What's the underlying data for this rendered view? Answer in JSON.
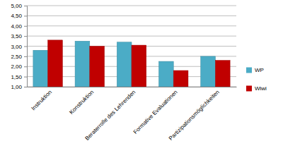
{
  "chart_data": {
    "type": "bar",
    "categories": [
      "Instruktion",
      "Konstruktion",
      "Beraterrolle des Lehrenden",
      "Formative Evaluationen",
      "Partizipationsmöglichkeiten"
    ],
    "series": [
      {
        "name": "WP",
        "color": "#4bacc6",
        "values": [
          2.8,
          3.25,
          3.2,
          2.25,
          2.5
        ]
      },
      {
        "name": "Wiwi",
        "color": "#c00000",
        "values": [
          3.3,
          3.0,
          3.05,
          1.8,
          2.3
        ]
      }
    ],
    "ylim": [
      1,
      5
    ],
    "yticks": [
      {
        "value": 1,
        "label": "1,00"
      },
      {
        "value": 1.5,
        "label": "1,50"
      },
      {
        "value": 2,
        "label": "2,00"
      },
      {
        "value": 2.5,
        "label": "2,50"
      },
      {
        "value": 3,
        "label": "3,00"
      },
      {
        "value": 3.5,
        "label": "3,50"
      },
      {
        "value": 4,
        "label": "4,00"
      },
      {
        "value": 4.5,
        "label": "4,50"
      },
      {
        "value": 5,
        "label": "5,00"
      }
    ],
    "grid": true,
    "legend": "right"
  }
}
